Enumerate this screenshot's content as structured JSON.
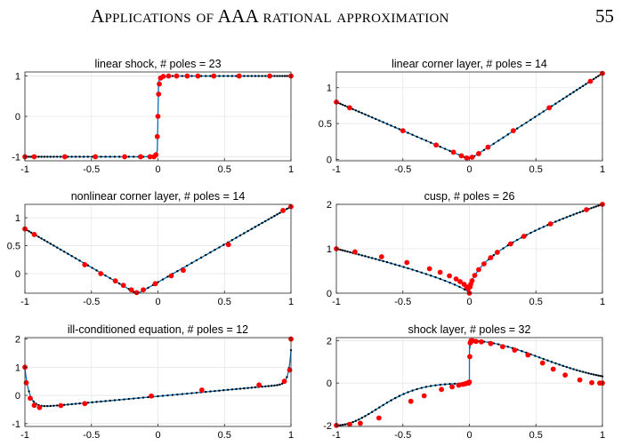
{
  "header": {
    "running_title": "Applications of AAA rational approximation",
    "page_number": "55"
  },
  "chart_data": [
    {
      "type": "line",
      "title": "linear shock, # poles = 23",
      "xlim": [
        -1,
        1
      ],
      "ylim": [
        -1.1,
        1.1
      ],
      "xticks": [
        -1,
        -0.5,
        0,
        0.5,
        1
      ],
      "xticklabels": [
        "-1",
        "-0.5",
        "0",
        "0.5",
        "1"
      ],
      "yticks": [
        -1,
        0,
        1
      ],
      "yticklabels": [
        "-1",
        "0",
        "1"
      ],
      "grid": true,
      "series": [
        {
          "color": "#0072BD",
          "x": [
            -1,
            -0.5,
            -0.1,
            -0.02,
            -0.005,
            0,
            0.005,
            0.02,
            0.1,
            0.5,
            1
          ],
          "y": [
            -1,
            -1,
            -1,
            -0.98,
            -0.85,
            0,
            0.85,
            0.98,
            1,
            1,
            1
          ]
        }
      ],
      "markers_red": {
        "x": [
          -1,
          -0.93,
          -0.7,
          -0.47,
          -0.25,
          -0.13,
          -0.06,
          -0.03,
          -0.015,
          -0.005,
          0,
          0.005,
          0.01,
          0.02,
          0.04,
          0.08,
          0.14,
          0.22,
          0.3,
          0.42,
          0.61,
          0.84,
          1
        ],
        "y": [
          -1,
          -1,
          -1,
          -1,
          -1,
          -1,
          -1,
          -1,
          -0.95,
          -0.5,
          0,
          0.55,
          0.8,
          0.95,
          0.99,
          1,
          1,
          1,
          1,
          1,
          1,
          1,
          1
        ]
      }
    },
    {
      "type": "line",
      "title": "linear corner layer, # poles = 14",
      "xlim": [
        -1,
        1
      ],
      "ylim": [
        -0.02,
        1.22
      ],
      "xticks": [
        -1,
        -0.5,
        0,
        0.5,
        1
      ],
      "xticklabels": [
        "-1",
        "-0.5",
        "0",
        "0.5",
        "1"
      ],
      "yticks": [
        0,
        0.5,
        1
      ],
      "yticklabels": [
        "0",
        "0.5",
        "1"
      ],
      "grid": true,
      "series": [
        {
          "color": "#0072BD",
          "x": [
            -1,
            -0.03,
            0,
            0.03,
            1
          ],
          "y": [
            0.8,
            0.025,
            0.02,
            0.035,
            1.2
          ]
        }
      ],
      "markers_red": {
        "x": [
          -1,
          -0.9,
          -0.5,
          -0.25,
          -0.12,
          -0.06,
          -0.02,
          0.02,
          0.07,
          0.14,
          0.33,
          0.6,
          0.91,
          1
        ],
        "y": [
          0.8,
          0.72,
          0.4,
          0.2,
          0.1,
          0.05,
          0.02,
          0.03,
          0.08,
          0.17,
          0.4,
          0.72,
          1.09,
          1.2
        ]
      }
    },
    {
      "type": "line",
      "title": "nonlinear corner layer, # poles = 14",
      "xlim": [
        -1,
        1
      ],
      "ylim": [
        -0.35,
        1.24
      ],
      "xticks": [
        -1,
        -0.5,
        0,
        0.5,
        1
      ],
      "xticklabels": [
        "-1",
        "-0.5",
        "0",
        "0.5",
        "1"
      ],
      "yticks": [
        0,
        0.5,
        1
      ],
      "yticklabels": [
        "0",
        "0.5",
        "1"
      ],
      "grid": true,
      "series": [
        {
          "color": "#0072BD",
          "x": [
            -1,
            -0.18,
            -0.16,
            -0.13,
            1
          ],
          "y": [
            0.8,
            -0.33,
            -0.34,
            -0.33,
            1.2
          ]
        }
      ],
      "markers_red": {
        "x": [
          -1,
          -0.93,
          -0.55,
          -0.43,
          -0.32,
          -0.26,
          -0.2,
          -0.16,
          -0.11,
          -0.02,
          0.1,
          0.19,
          0.53,
          0.94,
          1
        ],
        "y": [
          0.8,
          0.7,
          0.16,
          0,
          -0.13,
          -0.21,
          -0.29,
          -0.34,
          -0.29,
          -0.18,
          -0.04,
          0.06,
          0.52,
          1.13,
          1.2
        ]
      }
    },
    {
      "type": "line",
      "title": "cusp, # poles = 26",
      "xlim": [
        -1,
        1
      ],
      "ylim": [
        0,
        2
      ],
      "xticks": [
        -1,
        -0.5,
        0,
        0.5,
        1
      ],
      "xticklabels": [
        "-1",
        "-0.5",
        "0",
        "0.5",
        "1"
      ],
      "yticks": [
        0,
        1,
        2
      ],
      "yticklabels": [
        "0",
        "1",
        "2"
      ],
      "grid": true,
      "series": [
        {
          "color": "#0072BD",
          "formula": "cusp"
        }
      ],
      "markers_red": {
        "x": [
          -1,
          -0.86,
          -0.66,
          -0.47,
          -0.3,
          -0.22,
          -0.15,
          -0.1,
          -0.07,
          -0.04,
          -0.02,
          -0.01,
          0,
          0.005,
          0.01,
          0.02,
          0.04,
          0.07,
          0.11,
          0.16,
          0.21,
          0.31,
          0.41,
          0.61,
          0.88,
          1
        ],
        "y": [
          1,
          0.93,
          0.82,
          0.69,
          0.55,
          0.47,
          0.39,
          0.32,
          0.26,
          0.2,
          0.14,
          0.1,
          0,
          0.14,
          0.2,
          0.28,
          0.4,
          0.53,
          0.66,
          0.8,
          0.92,
          1.11,
          1.28,
          1.56,
          1.88,
          2
        ]
      }
    },
    {
      "type": "line",
      "title": "ill-conditioned equation, # poles = 12",
      "xlim": [
        -1,
        1
      ],
      "ylim": [
        -1.1,
        2.05
      ],
      "xticks": [
        -1,
        -0.5,
        0,
        0.5,
        1
      ],
      "xticklabels": [
        "-1",
        "-0.5",
        "0",
        "0.5",
        "1"
      ],
      "yticks": [
        -1,
        0,
        1,
        2
      ],
      "yticklabels": [
        "-1",
        "0",
        "1",
        "2"
      ],
      "grid": true,
      "series": [
        {
          "color": "#0072BD",
          "formula": "illcond"
        }
      ],
      "markers_red": {
        "x": [
          -1,
          -0.99,
          -0.96,
          -0.93,
          -0.89,
          -0.73,
          -0.55,
          -0.05,
          0.33,
          0.76,
          0.95,
          0.99,
          1
        ],
        "y": [
          1,
          0.45,
          -0.1,
          -0.35,
          -0.43,
          -0.36,
          -0.29,
          -0.02,
          0.19,
          0.37,
          0.5,
          0.9,
          2
        ]
      }
    },
    {
      "type": "line",
      "title": "shock layer, # poles = 32",
      "xlim": [
        -1,
        1
      ],
      "ylim": [
        -2.05,
        2.15
      ],
      "xticks": [
        -1,
        -0.5,
        0,
        0.5,
        1
      ],
      "xticklabels": [
        "-1",
        "-0.5",
        "0",
        "0.5",
        "1"
      ],
      "yticks": [
        -2,
        0,
        2
      ],
      "yticklabels": [
        "-2",
        "0",
        "2"
      ],
      "grid": true,
      "series": [
        {
          "color": "#0072BD",
          "formula": "shocklayer"
        }
      ],
      "markers_red": {
        "x": [
          -1,
          -0.9,
          -0.82,
          -0.68,
          -0.44,
          -0.34,
          -0.21,
          -0.13,
          -0.08,
          -0.05,
          -0.03,
          -0.015,
          -0.006,
          0,
          0.003,
          0.006,
          0.012,
          0.025,
          0.05,
          0.09,
          0.16,
          0.25,
          0.34,
          0.44,
          0.55,
          0.63,
          0.72,
          0.83,
          0.92,
          0.98,
          1
        ],
        "y": [
          -2,
          -1.95,
          -1.9,
          -1.65,
          -0.86,
          -0.6,
          -0.3,
          -0.18,
          -0.1,
          -0.06,
          -0.03,
          0,
          0,
          0.05,
          1.25,
          1.9,
          2,
          2,
          1.97,
          1.95,
          1.87,
          1.72,
          1.56,
          1.33,
          0.95,
          0.66,
          0.38,
          0.15,
          0.02,
          0,
          0
        ]
      }
    }
  ]
}
